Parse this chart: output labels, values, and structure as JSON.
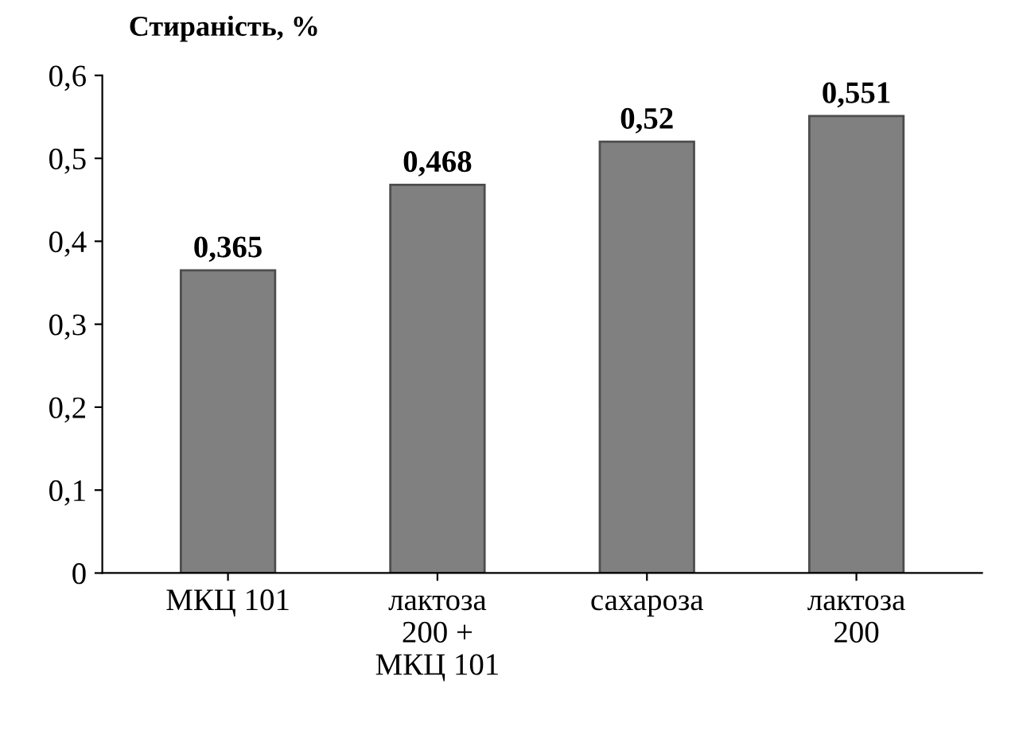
{
  "chart_data": {
    "type": "bar",
    "title": "Стираність, %",
    "categories": [
      "МКЦ 101",
      "лактоза\n200 +\nМКЦ 101",
      "сахароза",
      "лактоза\n200"
    ],
    "values": [
      0.365,
      0.468,
      0.52,
      0.551
    ],
    "value_labels": [
      "0,365",
      "0,468",
      "0,52",
      "0,551"
    ],
    "color": "#808080",
    "ylim": [
      0,
      0.6
    ],
    "yticks": [
      0,
      {
        "value": 0.1,
        "label": "0,1"
      },
      {
        "value": 0.2,
        "label": "0,2"
      },
      {
        "value": 0.3,
        "label": "0,3"
      },
      {
        "value": 0.4,
        "label": "0,4"
      },
      {
        "value": 0.5,
        "label": "0,5"
      },
      {
        "value": 0.6,
        "label": "0,6"
      }
    ],
    "grid": false
  }
}
